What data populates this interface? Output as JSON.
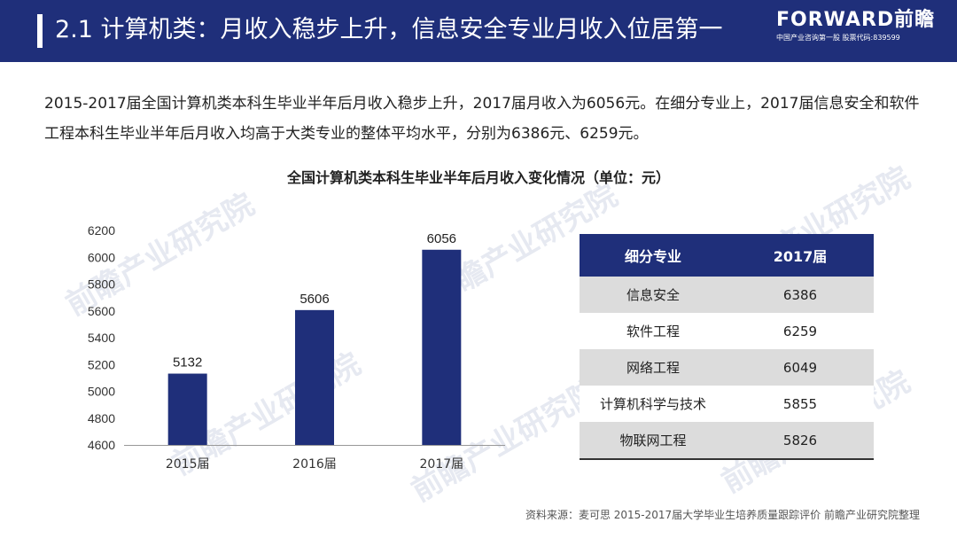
{
  "header": {
    "title": "2.1 计算机类：月收入稳步上升，信息安全专业月收入位居第一",
    "logo_main": "FORWARD前瞻",
    "logo_sub": "中国产业咨询第一股  股票代码:839599"
  },
  "summary": "2015-2017届全国计算机类本科生毕业半年后月收入稳步上升，2017届月收入为6056元。在细分专业上，2017届信息安全和软件工程本科生毕业半年后月收入均高于大类专业的整体平均水平，分别为6386元、6259元。",
  "watermark": "前瞻产业研究院",
  "colors": {
    "header_bg": "#1f2f7a",
    "bar": "#1f2f7a",
    "table_alt": "#dcdcdc"
  },
  "chart_data": {
    "type": "bar",
    "title": "全国计算机类本科生毕业半年后月收入变化情况（单位：元）",
    "categories": [
      "2015届",
      "2016届",
      "2017届"
    ],
    "values": [
      5132,
      5606,
      6056
    ],
    "ylim": [
      4600,
      6200
    ],
    "yticks": [
      4600,
      4800,
      5000,
      5200,
      5400,
      5600,
      5800,
      6000,
      6200
    ],
    "grid": false
  },
  "table": {
    "headers": [
      "细分专业",
      "2017届"
    ],
    "rows": [
      [
        "信息安全",
        "6386"
      ],
      [
        "软件工程",
        "6259"
      ],
      [
        "网络工程",
        "6049"
      ],
      [
        "计算机科学与技术",
        "5855"
      ],
      [
        "物联网工程",
        "5826"
      ]
    ]
  },
  "source": "资料来源：麦可思 2015-2017届大学毕业生培养质量跟踪评价 前瞻产业研究院整理"
}
